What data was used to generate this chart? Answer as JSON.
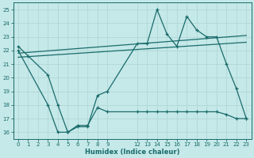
{
  "xlabel": "Humidex (Indice chaleur)",
  "bg_color": "#c5e8e8",
  "grid_color": "#aed4d4",
  "line_color": "#1a6b6b",
  "xlim": [
    -0.5,
    23.5
  ],
  "ylim": [
    15.5,
    25.5
  ],
  "xticks": [
    0,
    1,
    2,
    3,
    4,
    5,
    6,
    7,
    8,
    9,
    12,
    13,
    14,
    15,
    16,
    17,
    18,
    19,
    20,
    21,
    22,
    23
  ],
  "yticks": [
    16,
    17,
    18,
    19,
    20,
    21,
    22,
    23,
    24,
    25
  ],
  "line1_x": [
    0,
    1,
    3,
    4,
    5,
    6,
    7,
    8,
    9,
    12,
    13,
    14,
    15,
    16,
    17,
    18,
    19,
    20,
    21,
    22,
    23
  ],
  "line1_y": [
    22.3,
    21.6,
    20.2,
    18.0,
    16.0,
    16.4,
    16.4,
    18.7,
    19.0,
    22.5,
    22.5,
    25.0,
    23.2,
    22.3,
    24.5,
    23.5,
    23.0,
    23.0,
    21.0,
    19.2,
    17.0
  ],
  "line2_x": [
    0,
    23
  ],
  "line2_y": [
    21.8,
    23.1
  ],
  "line3_x": [
    0,
    23
  ],
  "line3_y": [
    21.5,
    22.6
  ],
  "line4_x": [
    0,
    3,
    4,
    5,
    6,
    7,
    8,
    9,
    12,
    13,
    14,
    15,
    16,
    17,
    18,
    19,
    20,
    21,
    22,
    23
  ],
  "line4_y": [
    22.0,
    18.0,
    16.0,
    16.0,
    16.5,
    16.5,
    17.8,
    17.5,
    17.5,
    17.5,
    17.5,
    17.5,
    17.5,
    17.5,
    17.5,
    17.5,
    17.5,
    17.3,
    17.0,
    17.0
  ]
}
